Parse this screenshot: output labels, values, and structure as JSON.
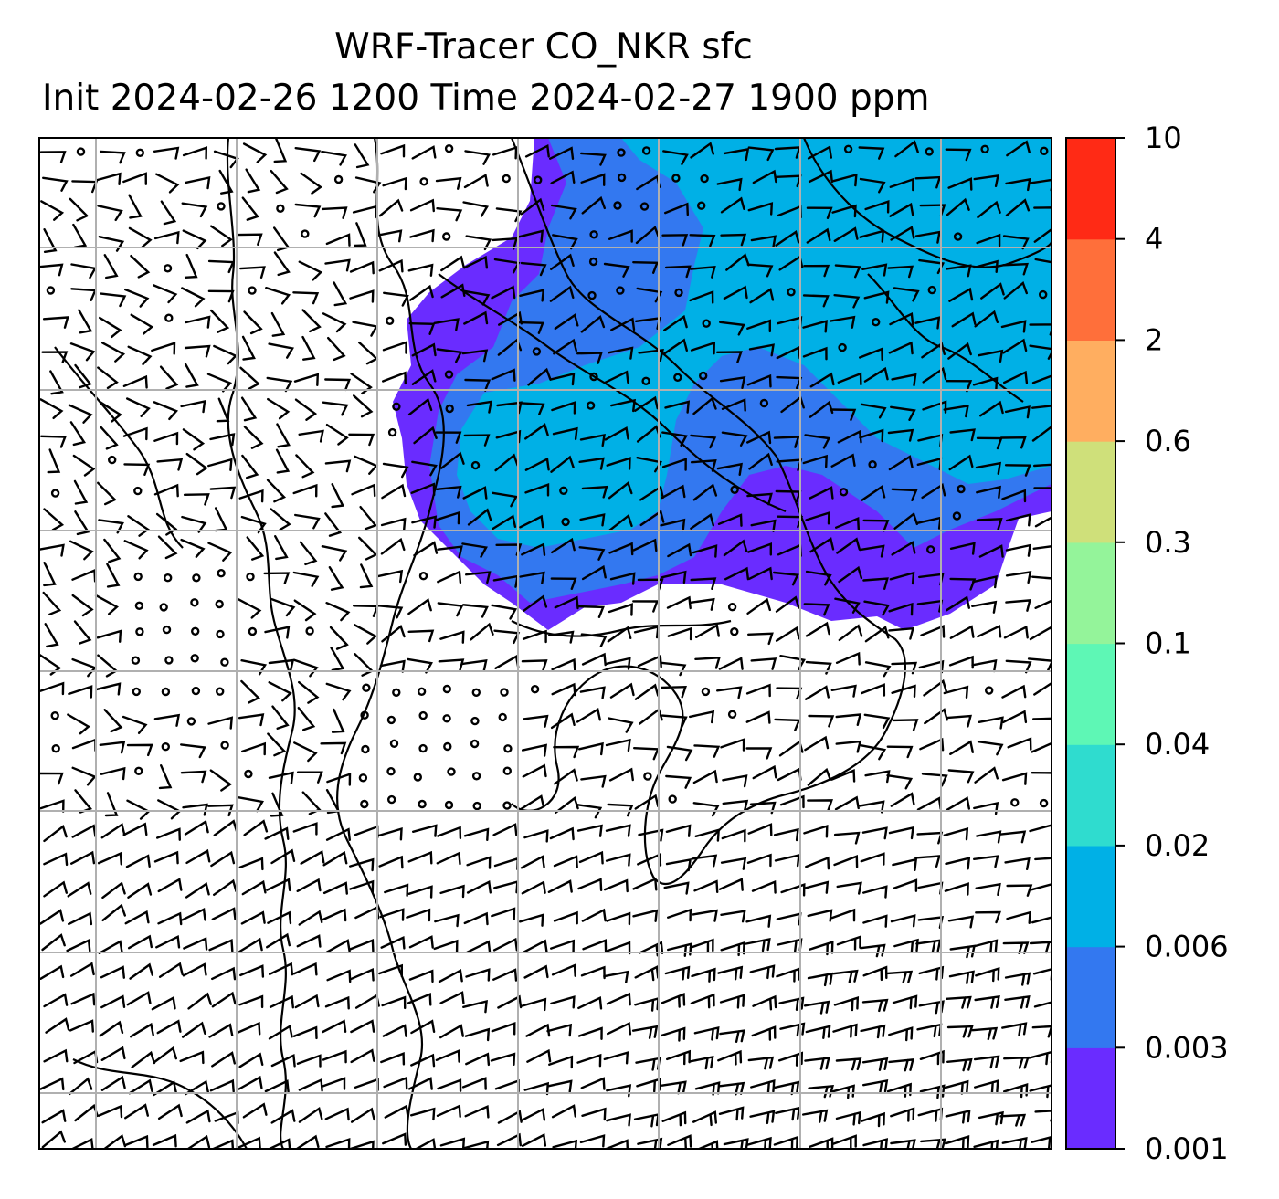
{
  "title": {
    "line1": "WRF-Tracer CO_NKR sfc",
    "line2": "Init 2024-02-26 1200 Time 2024-02-27 1900 ppm"
  },
  "colorbar": {
    "levels": [
      "0.001",
      "0.003",
      "0.006",
      "0.02",
      "0.04",
      "0.1",
      "0.3",
      "0.6",
      "2",
      "4",
      "10"
    ],
    "colors": [
      "#6a2cff",
      "#3378f0",
      "#00b0e6",
      "#2fdccf",
      "#5ef7b5",
      "#94f49a",
      "#cfe07a",
      "#ffae60",
      "#ff6f3a",
      "#ff2a15"
    ]
  },
  "map": {
    "plume_colors": {
      "low": "#6a2cff",
      "mid": "#3378f0",
      "high": "#00b0e6"
    },
    "grid_color": "#b0b0b0",
    "coast_color": "#000000",
    "barb_color": "#000000"
  }
}
